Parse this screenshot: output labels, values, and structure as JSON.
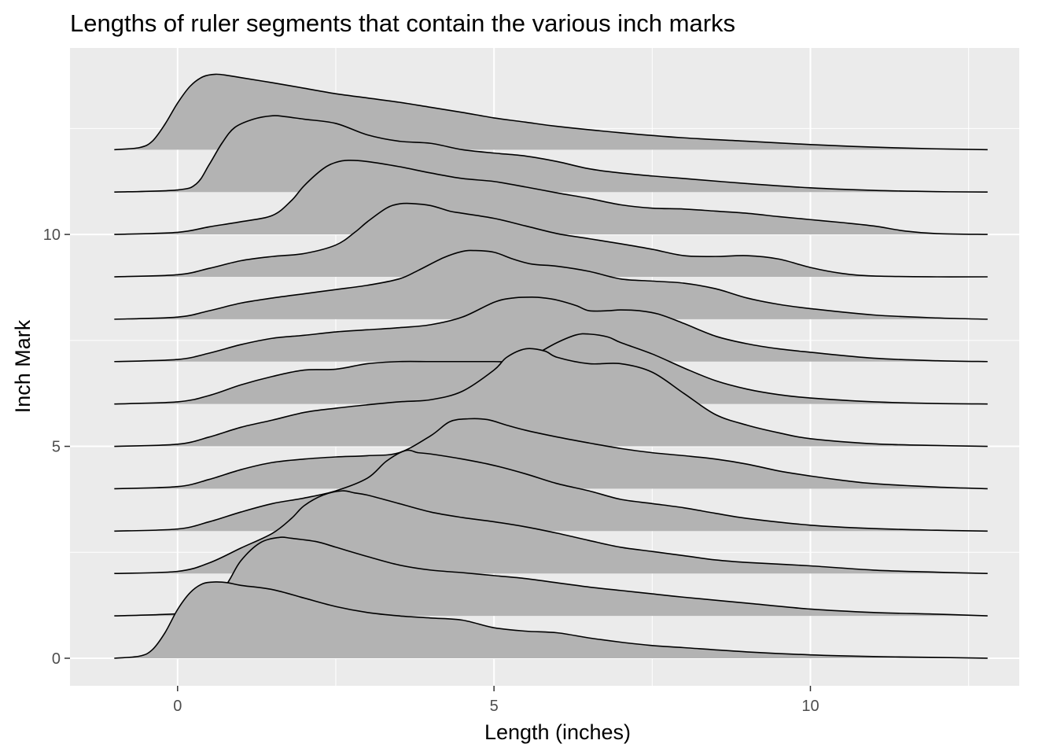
{
  "chart_data": {
    "type": "ridgeline",
    "title": "Lengths of ruler segments that contain the various inch marks",
    "xlabel": "Length (inches)",
    "ylabel": "Inch Mark",
    "xlim": [
      -1.7,
      13.3
    ],
    "ylim": [
      -0.65,
      14.4
    ],
    "x_ticks": [
      0,
      5,
      10
    ],
    "y_ticks": [
      0,
      5,
      10
    ],
    "grid": true,
    "background": "#ebebeb",
    "fill_color": "#b3b3b3",
    "line_color": "#000000",
    "series": [
      {
        "baseline": 0,
        "x": [
          -1.0,
          -0.6,
          -0.4,
          -0.2,
          0.0,
          0.2,
          0.4,
          0.6,
          0.8,
          1.0,
          1.5,
          2.0,
          2.5,
          3.0,
          3.5,
          4.0,
          4.5,
          5.0,
          5.5,
          6.0,
          6.5,
          7.0,
          7.5,
          8.0,
          9.0,
          10.0,
          11.0,
          12.0,
          12.8
        ],
        "y": [
          0.0,
          0.05,
          0.2,
          0.6,
          1.15,
          1.55,
          1.76,
          1.8,
          1.78,
          1.72,
          1.62,
          1.42,
          1.22,
          1.08,
          1.0,
          0.95,
          0.9,
          0.72,
          0.64,
          0.6,
          0.48,
          0.38,
          0.3,
          0.25,
          0.15,
          0.08,
          0.04,
          0.02,
          0.0
        ]
      },
      {
        "baseline": 1,
        "x": [
          -1.0,
          0.0,
          0.5,
          0.8,
          1.0,
          1.3,
          1.6,
          1.8,
          2.2,
          2.5,
          3.0,
          3.5,
          4.0,
          4.5,
          5.0,
          5.5,
          6.0,
          6.5,
          7.0,
          7.5,
          8.0,
          9.0,
          10.0,
          11.0,
          12.0,
          12.8
        ],
        "y": [
          0.0,
          0.05,
          0.15,
          0.8,
          1.3,
          1.72,
          1.85,
          1.83,
          1.75,
          1.62,
          1.4,
          1.2,
          1.08,
          1.02,
          0.95,
          0.88,
          0.78,
          0.68,
          0.6,
          0.52,
          0.44,
          0.3,
          0.16,
          0.08,
          0.04,
          0.0
        ]
      },
      {
        "baseline": 2,
        "x": [
          -1.0,
          0.0,
          0.5,
          1.0,
          1.5,
          1.8,
          2.0,
          2.3,
          2.6,
          2.8,
          3.0,
          3.5,
          4.0,
          4.5,
          5.0,
          5.5,
          6.0,
          6.5,
          7.0,
          7.5,
          8.0,
          8.5,
          9.0,
          10.0,
          11.0,
          12.0,
          12.8
        ],
        "y": [
          0.0,
          0.05,
          0.25,
          0.6,
          0.95,
          1.3,
          1.6,
          1.85,
          1.95,
          1.9,
          1.85,
          1.65,
          1.45,
          1.32,
          1.22,
          1.1,
          0.95,
          0.78,
          0.62,
          0.52,
          0.42,
          0.32,
          0.26,
          0.18,
          0.08,
          0.03,
          0.0
        ]
      },
      {
        "baseline": 3,
        "x": [
          -1.0,
          0.0,
          0.5,
          1.0,
          1.5,
          2.0,
          2.5,
          3.0,
          3.3,
          3.6,
          3.8,
          4.0,
          4.5,
          5.0,
          5.5,
          6.0,
          6.5,
          7.0,
          7.5,
          8.0,
          8.5,
          9.0,
          10.0,
          11.0,
          12.0,
          12.8
        ],
        "y": [
          0.0,
          0.05,
          0.22,
          0.45,
          0.65,
          0.78,
          0.95,
          1.25,
          1.65,
          1.9,
          1.85,
          1.82,
          1.7,
          1.55,
          1.35,
          1.12,
          0.95,
          0.75,
          0.65,
          0.55,
          0.42,
          0.3,
          0.14,
          0.06,
          0.02,
          0.0
        ]
      },
      {
        "baseline": 4,
        "x": [
          -1.0,
          0.0,
          0.5,
          1.0,
          1.5,
          2.0,
          2.5,
          3.0,
          3.5,
          4.0,
          4.3,
          4.6,
          4.9,
          5.2,
          5.5,
          6.0,
          6.5,
          7.0,
          7.5,
          8.0,
          8.5,
          9.0,
          9.5,
          10.0,
          10.5,
          11.0,
          12.0,
          12.8
        ],
        "y": [
          0.0,
          0.05,
          0.22,
          0.45,
          0.62,
          0.7,
          0.75,
          0.78,
          0.85,
          1.25,
          1.58,
          1.65,
          1.63,
          1.5,
          1.38,
          1.22,
          1.08,
          0.95,
          0.85,
          0.78,
          0.7,
          0.58,
          0.42,
          0.3,
          0.2,
          0.12,
          0.04,
          0.0
        ]
      },
      {
        "baseline": 5,
        "x": [
          -1.0,
          0.0,
          0.5,
          1.0,
          1.5,
          2.0,
          2.5,
          3.0,
          3.5,
          4.0,
          4.5,
          5.0,
          5.2,
          5.5,
          5.8,
          6.0,
          6.5,
          7.0,
          7.5,
          8.0,
          8.5,
          9.0,
          9.5,
          10.0,
          11.0,
          12.0,
          12.8
        ],
        "y": [
          0.0,
          0.05,
          0.22,
          0.45,
          0.62,
          0.8,
          0.9,
          0.98,
          1.05,
          1.1,
          1.3,
          1.8,
          2.1,
          2.3,
          2.25,
          2.1,
          1.95,
          1.95,
          1.75,
          1.25,
          0.75,
          0.5,
          0.32,
          0.18,
          0.06,
          0.02,
          0.0
        ]
      },
      {
        "baseline": 6,
        "x": [
          -1.0,
          0.0,
          0.5,
          1.0,
          1.5,
          2.0,
          2.5,
          3.0,
          3.5,
          4.0,
          4.5,
          5.0,
          5.5,
          5.7,
          6.0,
          6.3,
          6.5,
          6.8,
          7.0,
          7.5,
          8.0,
          8.5,
          9.0,
          9.5,
          10.0,
          11.0,
          12.0,
          12.8
        ],
        "y": [
          0.0,
          0.05,
          0.2,
          0.45,
          0.65,
          0.8,
          0.82,
          0.95,
          1.0,
          1.0,
          1.0,
          1.0,
          1.0,
          1.2,
          1.45,
          1.63,
          1.65,
          1.58,
          1.45,
          1.18,
          0.85,
          0.55,
          0.35,
          0.22,
          0.14,
          0.05,
          0.01,
          0.0
        ]
      },
      {
        "baseline": 7,
        "x": [
          -1.0,
          0.0,
          0.5,
          1.0,
          1.5,
          2.0,
          2.5,
          3.0,
          3.5,
          4.0,
          4.5,
          5.0,
          5.3,
          5.6,
          5.8,
          6.0,
          6.3,
          6.5,
          6.8,
          7.0,
          7.3,
          7.6,
          8.0,
          8.5,
          9.0,
          9.5,
          10.0,
          11.0,
          12.0,
          12.8
        ],
        "y": [
          0.0,
          0.05,
          0.2,
          0.4,
          0.55,
          0.62,
          0.7,
          0.75,
          0.8,
          0.87,
          1.05,
          1.4,
          1.5,
          1.52,
          1.5,
          1.45,
          1.32,
          1.2,
          1.2,
          1.22,
          1.2,
          1.12,
          0.9,
          0.6,
          0.42,
          0.3,
          0.22,
          0.08,
          0.02,
          0.0
        ]
      },
      {
        "baseline": 8,
        "x": [
          -1.0,
          0.0,
          0.5,
          1.0,
          1.5,
          2.0,
          2.5,
          3.0,
          3.5,
          3.8,
          4.2,
          4.5,
          4.7,
          5.0,
          5.3,
          5.6,
          6.0,
          6.5,
          7.0,
          7.5,
          8.0,
          8.5,
          9.0,
          9.5,
          10.0,
          11.0,
          12.0,
          12.8
        ],
        "y": [
          0.0,
          0.05,
          0.2,
          0.38,
          0.5,
          0.6,
          0.7,
          0.8,
          0.95,
          1.15,
          1.45,
          1.6,
          1.62,
          1.58,
          1.42,
          1.3,
          1.25,
          1.13,
          0.95,
          0.9,
          0.85,
          0.72,
          0.5,
          0.35,
          0.25,
          0.1,
          0.03,
          0.0
        ]
      },
      {
        "baseline": 9,
        "x": [
          -1.0,
          0.0,
          0.5,
          1.0,
          1.5,
          2.0,
          2.5,
          2.8,
          3.0,
          3.3,
          3.5,
          3.7,
          4.0,
          4.3,
          4.5,
          5.0,
          5.5,
          6.0,
          6.5,
          7.0,
          7.5,
          8.0,
          8.5,
          9.0,
          9.5,
          10.0,
          10.5,
          11.0,
          12.0,
          12.8
        ],
        "y": [
          0.0,
          0.05,
          0.2,
          0.38,
          0.48,
          0.55,
          0.75,
          1.05,
          1.3,
          1.62,
          1.72,
          1.73,
          1.68,
          1.55,
          1.5,
          1.38,
          1.2,
          1.02,
          0.9,
          0.78,
          0.65,
          0.5,
          0.48,
          0.5,
          0.42,
          0.22,
          0.08,
          0.02,
          0.0,
          0.0
        ]
      },
      {
        "baseline": 10,
        "x": [
          -1.0,
          0.0,
          0.5,
          1.0,
          1.5,
          1.8,
          2.0,
          2.3,
          2.5,
          2.7,
          3.0,
          3.5,
          4.0,
          4.5,
          5.0,
          5.5,
          6.0,
          6.5,
          7.0,
          7.5,
          8.0,
          8.5,
          9.0,
          9.5,
          10.0,
          10.5,
          11.0,
          11.5,
          12.0,
          12.8
        ],
        "y": [
          0.0,
          0.05,
          0.18,
          0.3,
          0.45,
          0.8,
          1.15,
          1.55,
          1.7,
          1.75,
          1.72,
          1.6,
          1.45,
          1.32,
          1.25,
          1.12,
          0.98,
          0.85,
          0.7,
          0.62,
          0.6,
          0.55,
          0.5,
          0.42,
          0.35,
          0.28,
          0.2,
          0.08,
          0.02,
          0.0
        ]
      },
      {
        "baseline": 11,
        "x": [
          -1.0,
          0.0,
          0.3,
          0.5,
          0.7,
          0.9,
          1.2,
          1.5,
          1.7,
          2.0,
          2.5,
          3.0,
          3.5,
          4.0,
          4.5,
          5.0,
          5.5,
          6.0,
          6.5,
          7.0,
          7.5,
          8.0,
          9.0,
          10.0,
          11.0,
          12.0,
          12.8
        ],
        "y": [
          0.0,
          0.05,
          0.2,
          0.65,
          1.15,
          1.52,
          1.72,
          1.8,
          1.78,
          1.72,
          1.62,
          1.35,
          1.2,
          1.15,
          1.0,
          0.92,
          0.85,
          0.72,
          0.55,
          0.45,
          0.38,
          0.32,
          0.2,
          0.1,
          0.04,
          0.01,
          0.0
        ]
      },
      {
        "baseline": 12,
        "x": [
          -1.0,
          -0.6,
          -0.4,
          -0.2,
          0.0,
          0.2,
          0.4,
          0.6,
          0.8,
          1.0,
          1.5,
          2.0,
          2.5,
          3.0,
          3.5,
          4.0,
          4.5,
          5.0,
          5.5,
          6.0,
          7.0,
          8.0,
          9.0,
          10.0,
          11.0,
          12.0,
          12.8
        ],
        "y": [
          0.0,
          0.05,
          0.2,
          0.6,
          1.1,
          1.5,
          1.72,
          1.78,
          1.75,
          1.7,
          1.58,
          1.45,
          1.32,
          1.22,
          1.12,
          1.0,
          0.88,
          0.75,
          0.65,
          0.55,
          0.4,
          0.28,
          0.2,
          0.12,
          0.06,
          0.02,
          0.0
        ]
      }
    ]
  }
}
